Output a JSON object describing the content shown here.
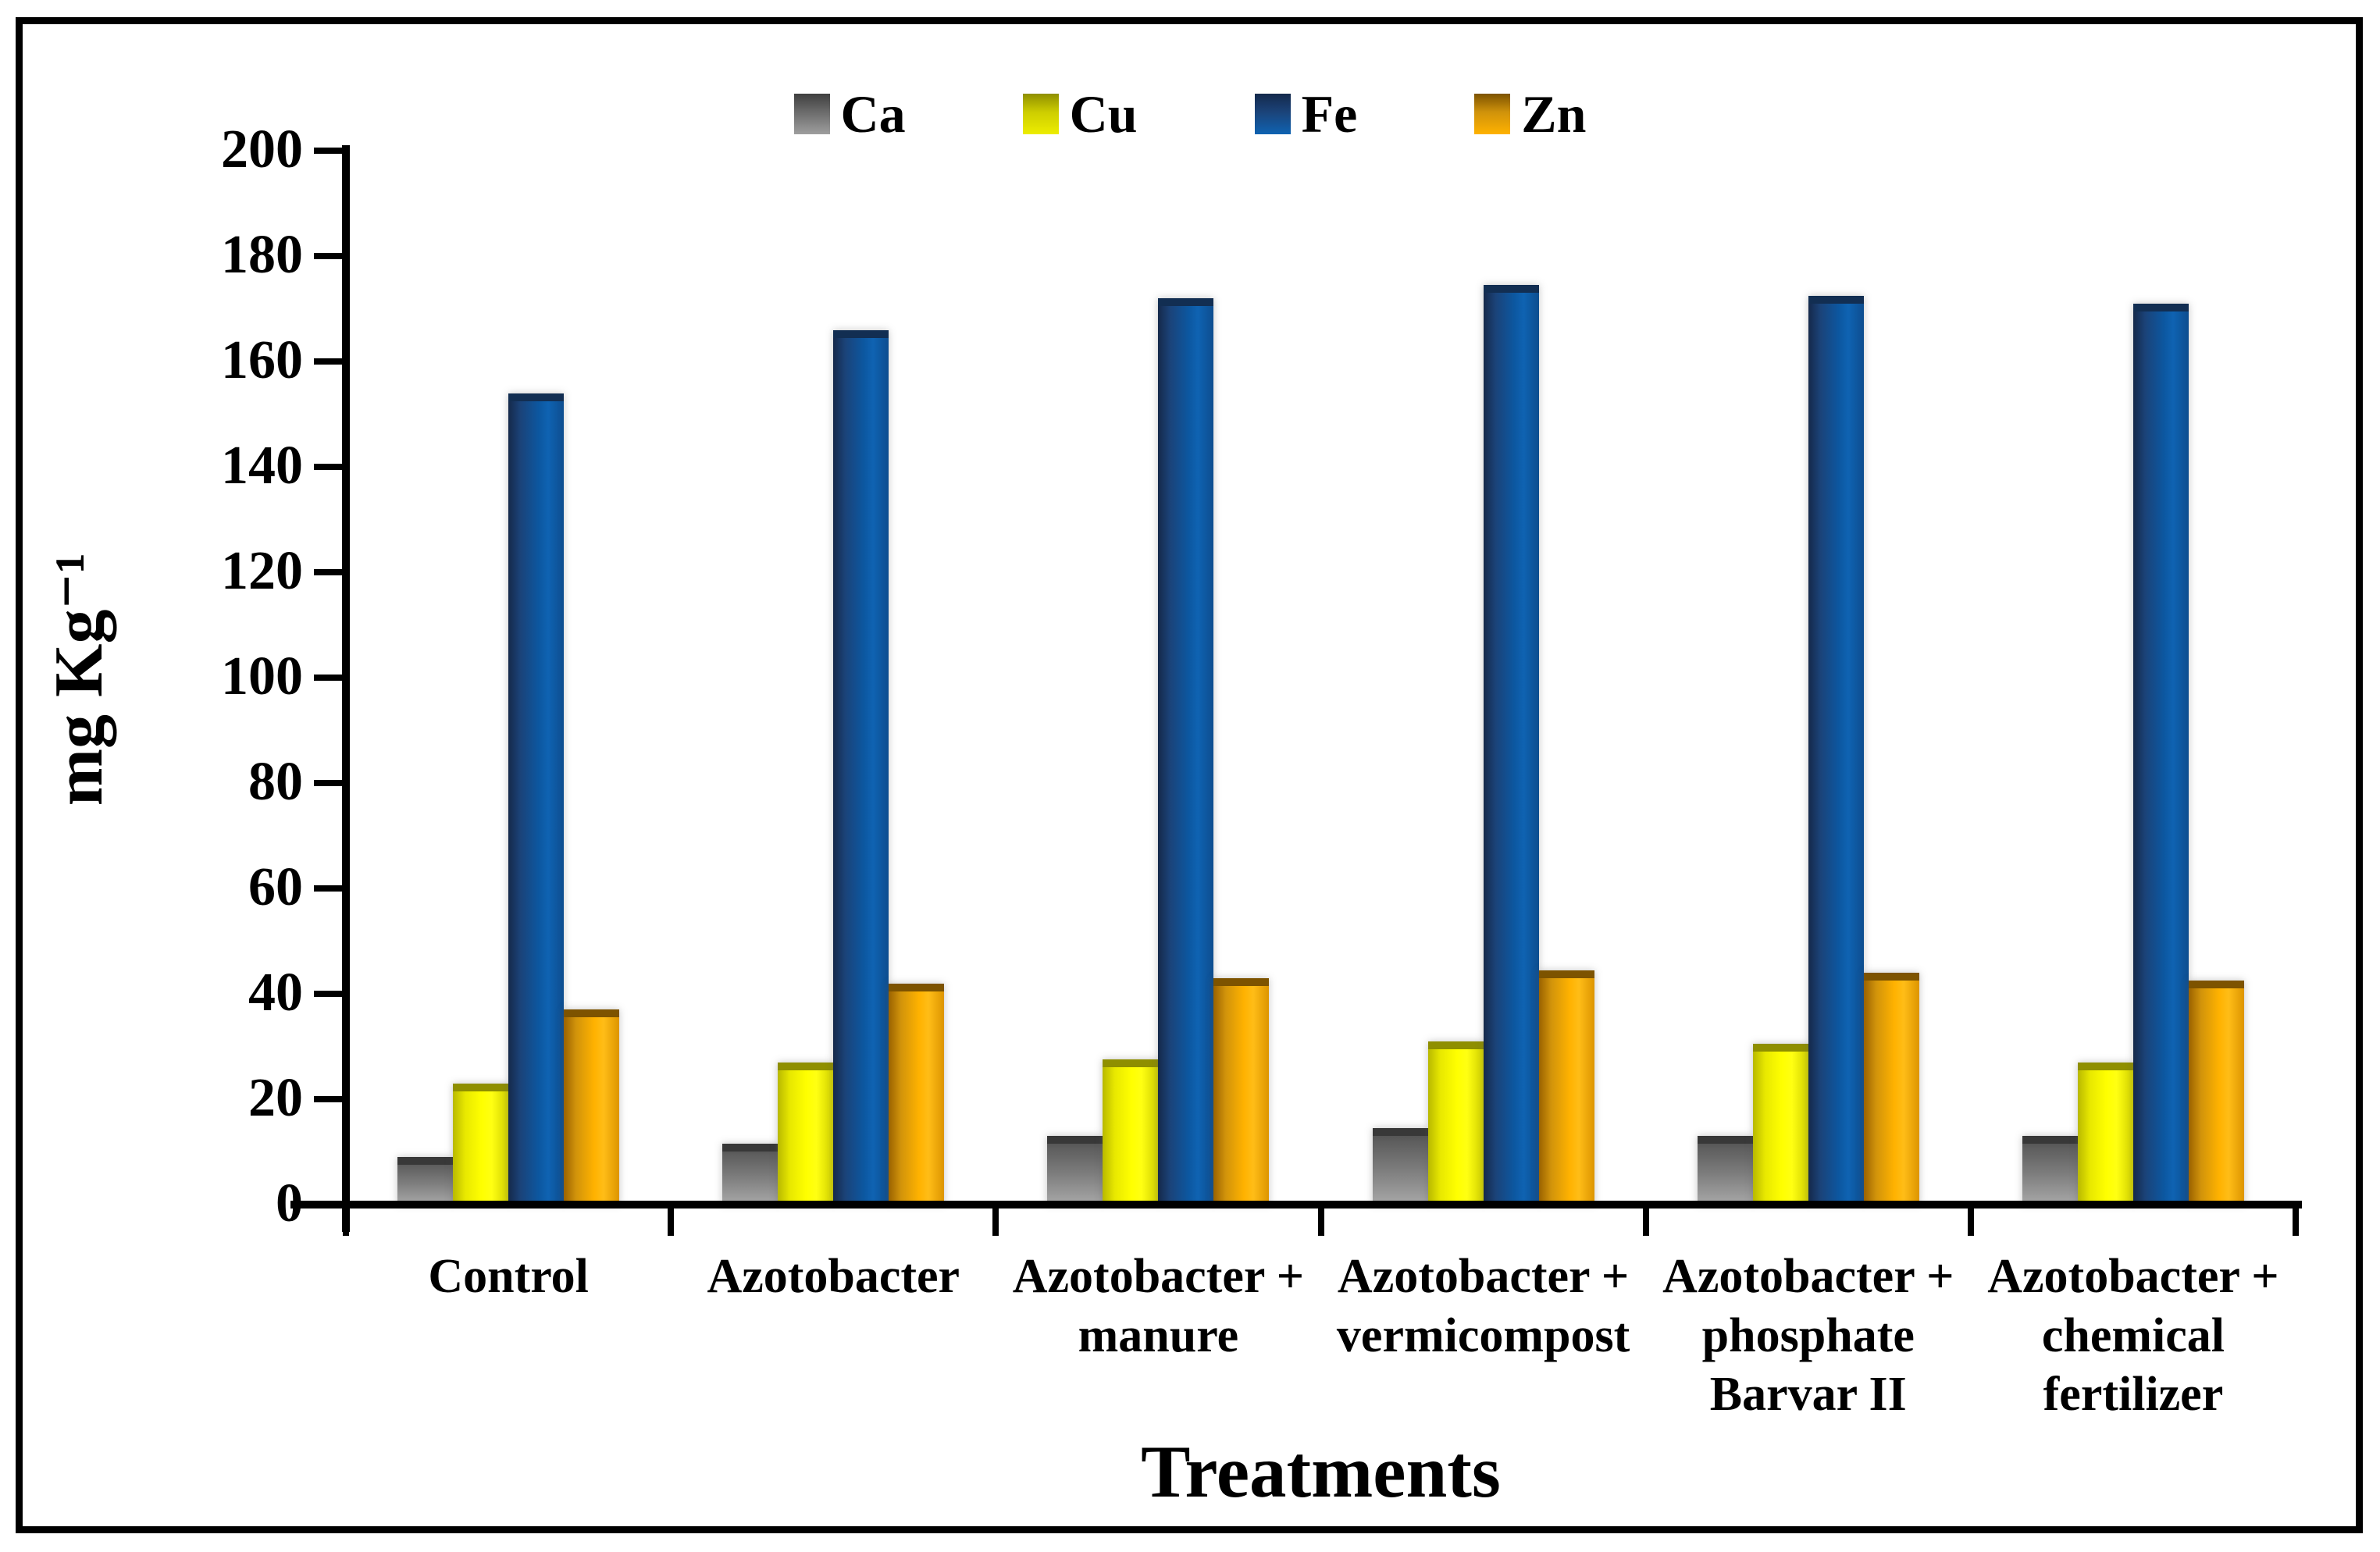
{
  "figure": {
    "background": "#ffffff",
    "border_color": "#000000"
  },
  "chart_data": {
    "type": "bar",
    "title": "",
    "xlabel": "Treatments",
    "ylabel": "mg Kg⁻¹",
    "ylim": [
      0,
      200
    ],
    "ytick_step": 20,
    "grid": false,
    "legend_position": "top-center",
    "categories": [
      "Control",
      "Azotobacter",
      "Azotobacter + manure",
      "Azotobacter + vermicompost",
      "Azotobacter + phosphate Barvar II",
      "Azotobacter + chemical fertilizer"
    ],
    "category_label_lines": [
      [
        "Control"
      ],
      [
        "Azotobacter"
      ],
      [
        "Azotobacter +",
        "manure"
      ],
      [
        "Azotobacter +",
        "vermicompost"
      ],
      [
        "Azotobacter +",
        "phosphate",
        "Barvar II"
      ],
      [
        "Azotobacter +",
        "chemical",
        "fertilizer"
      ]
    ],
    "series": [
      {
        "name": "Ca",
        "color": "#7f7f7f",
        "values": [
          9,
          11.5,
          13,
          14.5,
          13,
          13
        ]
      },
      {
        "name": "Cu",
        "color": "#ffff00",
        "values": [
          23,
          27,
          27.5,
          31,
          30.5,
          27
        ]
      },
      {
        "name": "Fe",
        "color": "#0c57a0",
        "values": [
          154,
          166,
          172,
          174.5,
          172.5,
          171
        ]
      },
      {
        "name": "Zn",
        "color": "#ffb200",
        "values": [
          37,
          42,
          43,
          44.5,
          44,
          42.5
        ]
      }
    ]
  }
}
